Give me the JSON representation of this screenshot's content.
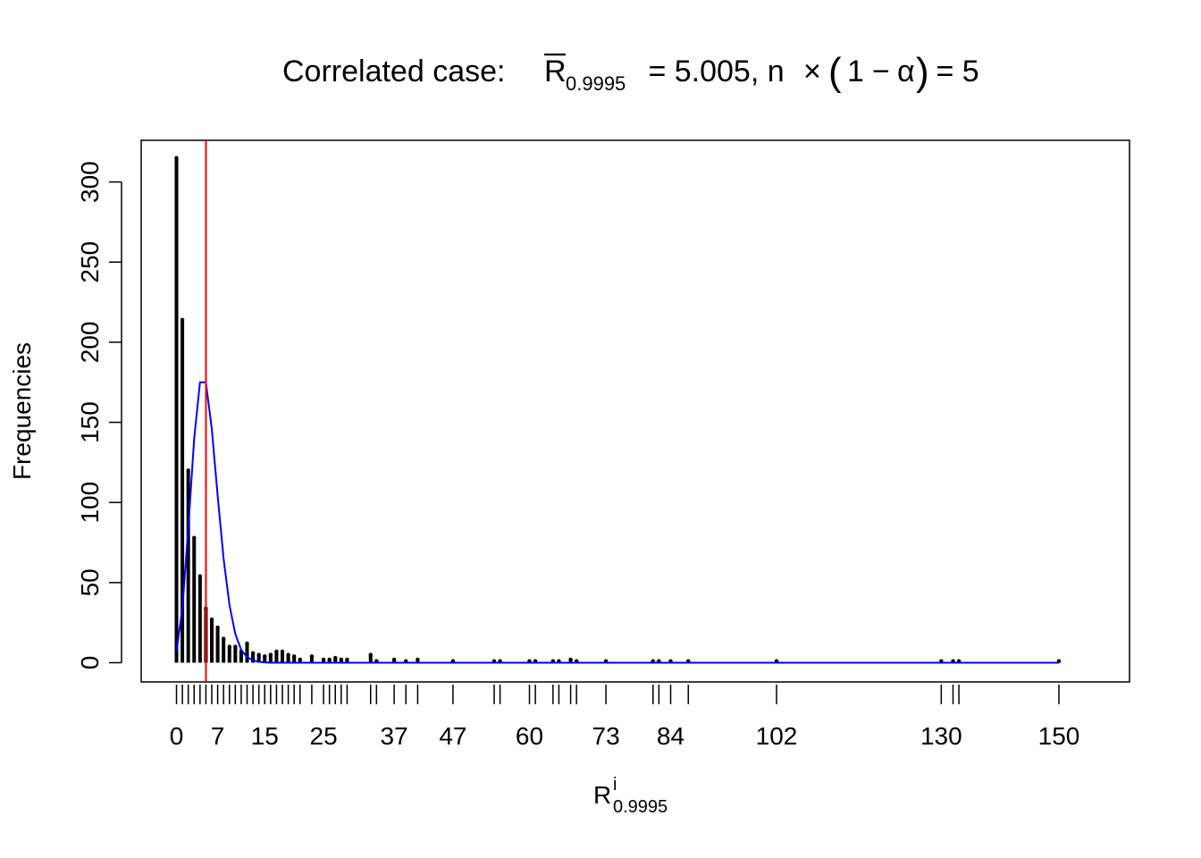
{
  "chart_data": {
    "type": "bar",
    "title": {
      "prefix": "Correlated case: ",
      "r_symbol": "R",
      "r_subscript": "0.9995",
      "eq1": " = 5.005, n",
      "times": "×",
      "one": "1",
      "minus": "−",
      "alpha": "α",
      "eq2": " = 5"
    },
    "xlabel": {
      "main": "R",
      "superscript": "i",
      "subscript": "0.9995"
    },
    "ylabel": "Frequencies",
    "xlim": [
      -6,
      162
    ],
    "ylim": [
      -12,
      326
    ],
    "x_tick_labels": [
      0,
      7,
      15,
      25,
      37,
      47,
      60,
      73,
      84,
      102,
      130,
      150
    ],
    "x_rug_ticks": [
      0,
      1,
      2,
      3,
      4,
      5,
      6,
      7,
      8,
      9,
      10,
      11,
      12,
      13,
      14,
      15,
      16,
      17,
      18,
      19,
      20,
      21,
      23,
      25,
      26,
      27,
      28,
      29,
      33,
      34,
      37,
      39,
      41,
      47,
      54,
      55,
      60,
      61,
      64,
      65,
      67,
      68,
      73,
      81,
      82,
      84,
      87,
      102,
      130,
      132,
      133,
      150
    ],
    "y_ticks": [
      0,
      50,
      100,
      150,
      200,
      250,
      300
    ],
    "grid": false,
    "series": [
      {
        "kind": "bars",
        "color": "#000000",
        "points": [
          [
            0,
            315
          ],
          [
            1,
            214
          ],
          [
            2,
            120
          ],
          [
            3,
            78
          ],
          [
            4,
            54
          ],
          [
            5,
            34
          ],
          [
            6,
            27
          ],
          [
            7,
            22
          ],
          [
            8,
            15
          ],
          [
            9,
            10
          ],
          [
            10,
            10
          ],
          [
            11,
            7
          ],
          [
            12,
            12
          ],
          [
            13,
            6
          ],
          [
            14,
            5
          ],
          [
            15,
            4
          ],
          [
            16,
            5
          ],
          [
            17,
            7
          ],
          [
            18,
            7
          ],
          [
            19,
            5
          ],
          [
            20,
            4
          ],
          [
            21,
            2
          ],
          [
            23,
            4
          ],
          [
            25,
            2
          ],
          [
            26,
            2
          ],
          [
            27,
            3
          ],
          [
            28,
            2
          ],
          [
            29,
            2
          ],
          [
            33,
            5
          ],
          [
            34,
            1
          ],
          [
            37,
            2
          ],
          [
            39,
            1
          ],
          [
            41,
            2
          ],
          [
            47,
            1
          ],
          [
            54,
            1
          ],
          [
            55,
            1
          ],
          [
            60,
            1
          ],
          [
            61,
            1
          ],
          [
            64,
            1
          ],
          [
            65,
            1
          ],
          [
            67,
            2
          ],
          [
            68,
            1
          ],
          [
            73,
            1
          ],
          [
            81,
            1
          ],
          [
            82,
            1
          ],
          [
            84,
            1
          ],
          [
            87,
            1
          ],
          [
            102,
            1
          ],
          [
            130,
            1
          ],
          [
            132,
            1
          ],
          [
            133,
            1
          ],
          [
            150,
            1
          ]
        ]
      },
      {
        "kind": "line",
        "color": "#0000ff",
        "points": [
          [
            0,
            7
          ],
          [
            1,
            34
          ],
          [
            2,
            84
          ],
          [
            3,
            140
          ],
          [
            4,
            175
          ],
          [
            5,
            175
          ],
          [
            6,
            146
          ],
          [
            7,
            104
          ],
          [
            8,
            65
          ],
          [
            9,
            36
          ],
          [
            10,
            18
          ],
          [
            11,
            8
          ],
          [
            12,
            3.5
          ],
          [
            13,
            1.5
          ],
          [
            14,
            0.6
          ],
          [
            15,
            0.2
          ],
          [
            16,
            0
          ],
          [
            17,
            0
          ],
          [
            18,
            0
          ],
          [
            19,
            0
          ],
          [
            20,
            0
          ],
          [
            21,
            0
          ],
          [
            23,
            0
          ],
          [
            25,
            0
          ],
          [
            26,
            0
          ],
          [
            27,
            0
          ],
          [
            28,
            0
          ],
          [
            29,
            0
          ],
          [
            33,
            0
          ],
          [
            34,
            0
          ],
          [
            37,
            0
          ],
          [
            39,
            0
          ],
          [
            41,
            0
          ],
          [
            47,
            0
          ],
          [
            54,
            0
          ],
          [
            55,
            0
          ],
          [
            60,
            0
          ],
          [
            61,
            0
          ],
          [
            64,
            0
          ],
          [
            65,
            0
          ],
          [
            67,
            0
          ],
          [
            68,
            0
          ],
          [
            73,
            0
          ],
          [
            81,
            0
          ],
          [
            82,
            0
          ],
          [
            84,
            0
          ],
          [
            87,
            0
          ],
          [
            102,
            0
          ],
          [
            130,
            0
          ],
          [
            132,
            0
          ],
          [
            133,
            0
          ],
          [
            150,
            0
          ]
        ]
      }
    ],
    "vline": {
      "x": 5.005,
      "color": "#ff0000"
    }
  }
}
